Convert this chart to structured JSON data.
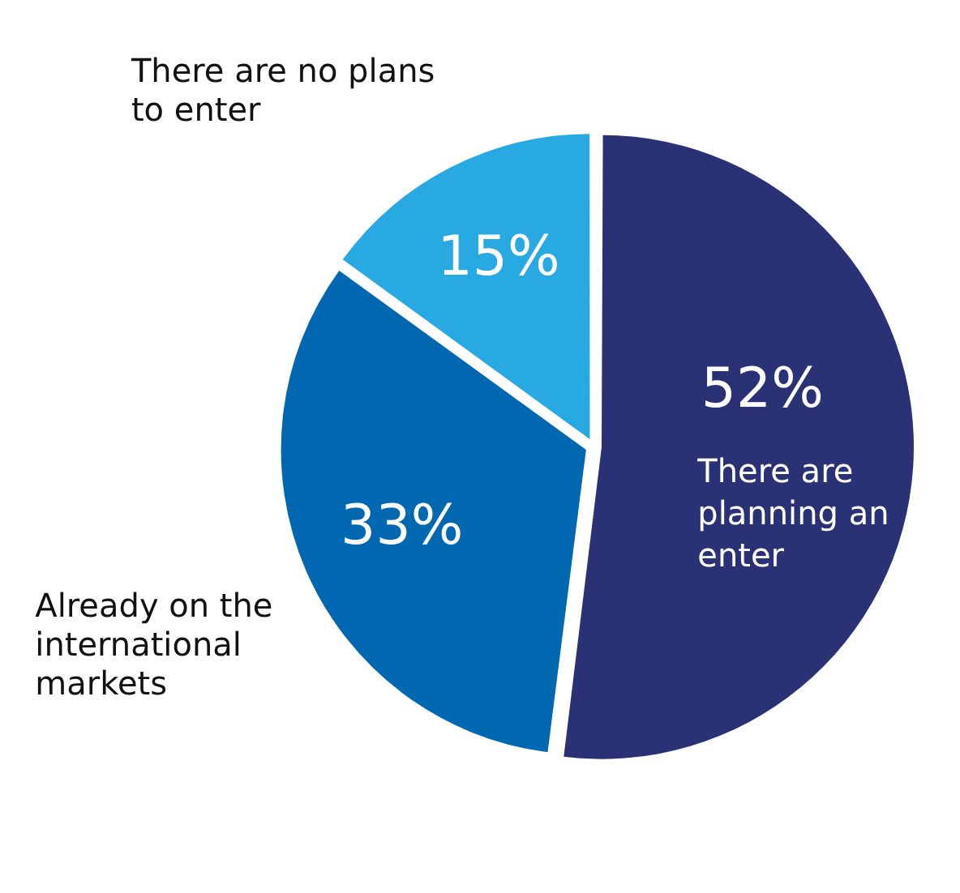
{
  "chart_data": {
    "type": "pie",
    "categories": [
      "There are planning an enter",
      "Already on the international markets",
      "There are no plans to enter"
    ],
    "values": [
      52,
      33,
      15
    ],
    "colors": [
      "#2b3175",
      "#0067b1",
      "#29a9e1"
    ],
    "value_labels": [
      "52%",
      "33%",
      "15%"
    ],
    "legend": false
  }
}
